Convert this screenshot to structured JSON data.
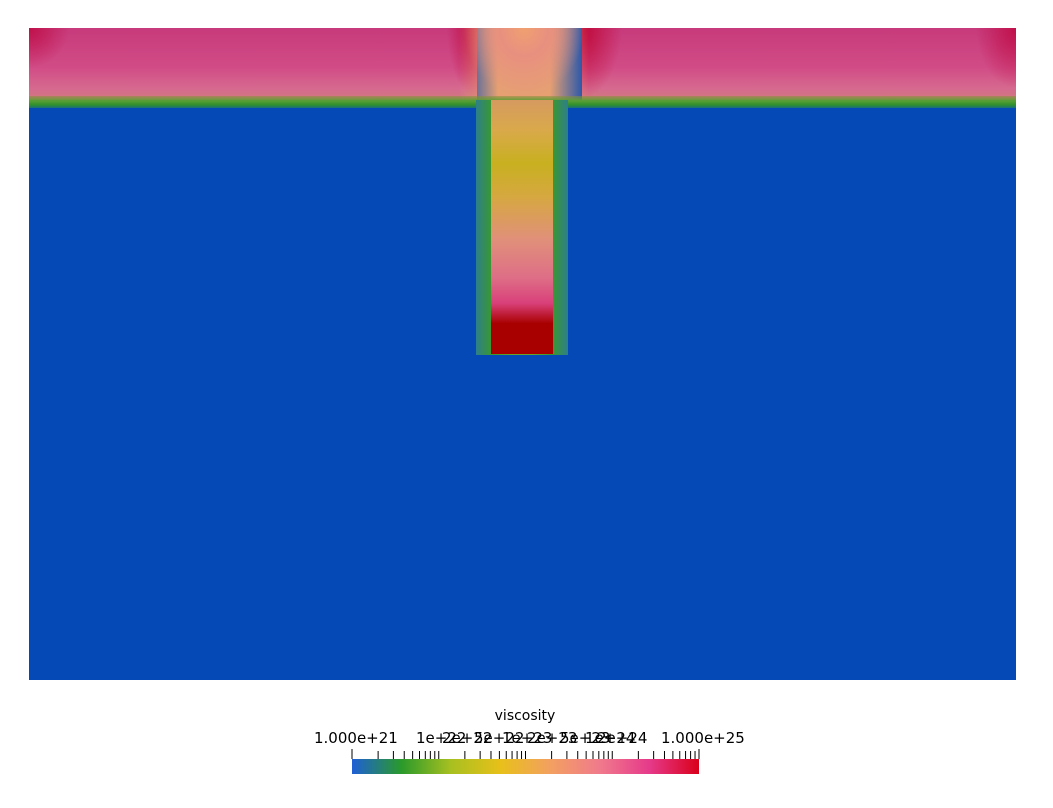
{
  "colorbar": {
    "title": "viscosity",
    "min_label": "1.000e+21",
    "max_label": "1.000e+25",
    "mid_labels": [
      "1e+22",
      "2e+22",
      "5e+22",
      "1e+23",
      "2e+23",
      "5e+23",
      "1e+24",
      "2e+24"
    ],
    "colormap": [
      "#1f5fd6",
      "#2a9a2a",
      "#a8c020",
      "#e8c01a",
      "#f3a060",
      "#f07a8c",
      "#e63a8a",
      "#d9001a"
    ],
    "scale": "log",
    "range": [
      1e+21,
      1e+25
    ]
  },
  "field_colors": {
    "mantle": "#0449b6",
    "plate": "#cf4685",
    "slab_tip": "#a80000",
    "slab_core": "#c8b020",
    "weak_zone": "#3a9a2a"
  }
}
